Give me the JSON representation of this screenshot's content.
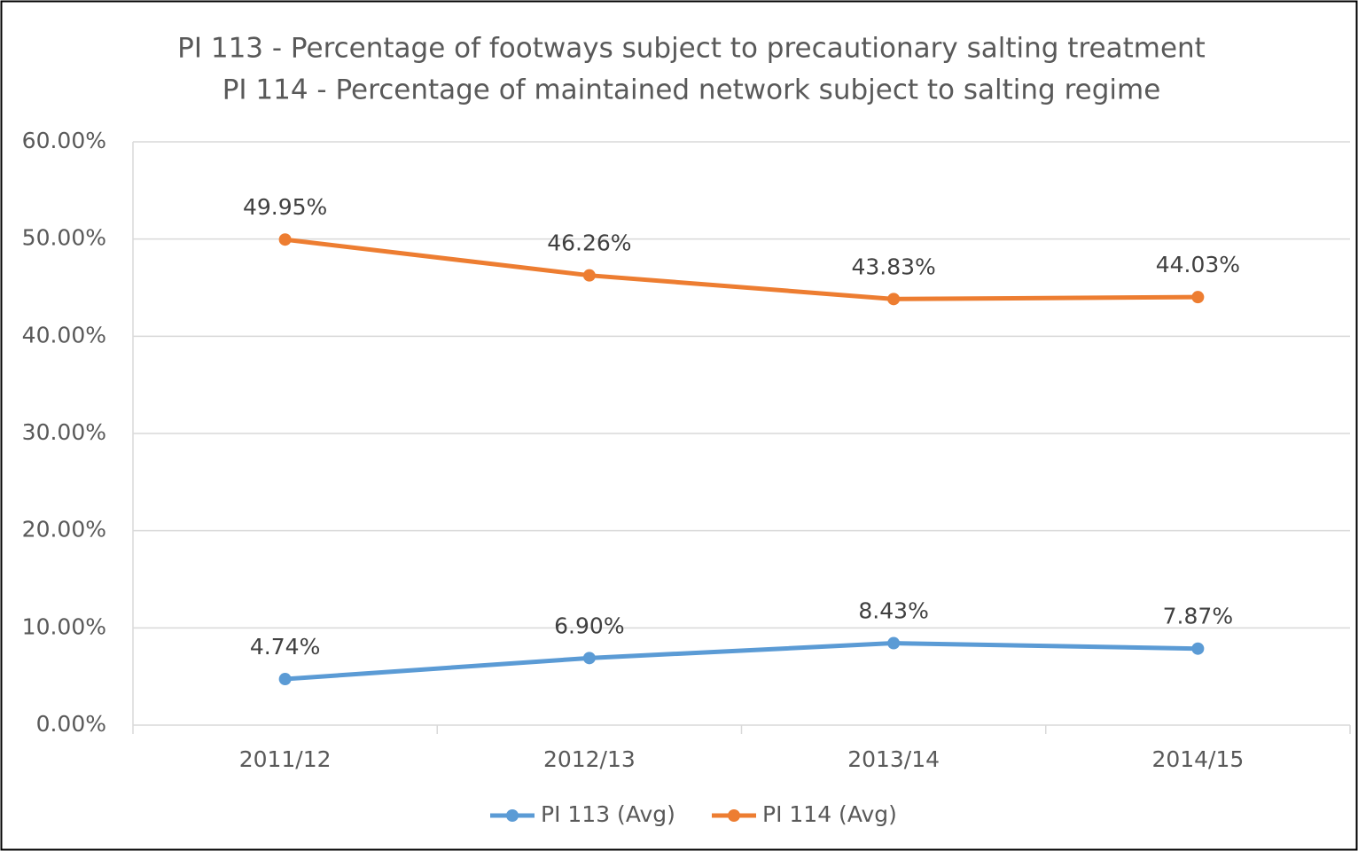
{
  "chart_data": {
    "type": "line",
    "title_lines": [
      "PI 113 - Percentage of footways subject to precautionary salting treatment",
      "PI 114 - Percentage of maintained network subject to salting regime"
    ],
    "categories": [
      "2011/12",
      "2012/13",
      "2013/14",
      "2014/15"
    ],
    "series": [
      {
        "name": "PI 113 (Avg)",
        "color": "#5b9bd5",
        "values": [
          4.74,
          6.9,
          8.43,
          7.87
        ],
        "value_labels": [
          "4.74%",
          "6.90%",
          "8.43%",
          "7.87%"
        ]
      },
      {
        "name": "PI 114 (Avg)",
        "color": "#ed7d31",
        "values": [
          49.95,
          46.26,
          43.83,
          44.03
        ],
        "value_labels": [
          "49.95%",
          "46.26%",
          "43.83%",
          "44.03%"
        ]
      }
    ],
    "ylim": [
      0,
      60
    ],
    "yticks": [
      {
        "value": 0,
        "label": "0.00%"
      },
      {
        "value": 10,
        "label": "10.00%"
      },
      {
        "value": 20,
        "label": "20.00%"
      },
      {
        "value": 30,
        "label": "30.00%"
      },
      {
        "value": 40,
        "label": "40.00%"
      },
      {
        "value": 50,
        "label": "50.00%"
      },
      {
        "value": 60,
        "label": "60.00%"
      }
    ],
    "grid": true,
    "legend": "bottom"
  }
}
